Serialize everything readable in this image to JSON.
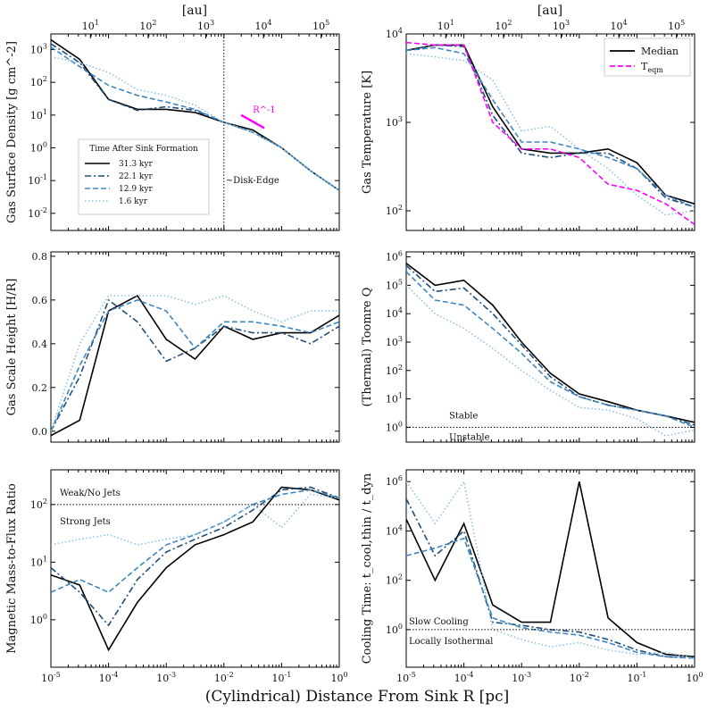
{
  "colors": {
    "s1": "#000000",
    "s2": "#1f4e79",
    "s3": "#3f87bf",
    "s4": "#8cc3e6",
    "teqm": "#ff00ff"
  },
  "xlabel": "(Cylindrical) Distance From Sink R [pc]",
  "top_axis_label": "[au]",
  "x_ticks": [
    "10^-5",
    "10^-4",
    "10^-3",
    "10^-2",
    "10^-1",
    "10^0"
  ],
  "au_ticks": [
    "10^1",
    "10^2",
    "10^3",
    "10^4",
    "10^5"
  ],
  "chart_data": [
    {
      "type": "line",
      "id": "surface_density",
      "ylabel": "Gas Surface Density [g cm^-2]",
      "yscale": "log",
      "ylim": [
        0.003,
        3000
      ],
      "yticks": [
        "10^-2",
        "10^-1",
        "10^0",
        "10^1",
        "10^2",
        "10^3"
      ],
      "x": [
        -5,
        -4.5,
        -4,
        -3.5,
        -3,
        -2.5,
        -2,
        -1.5,
        -1,
        -0.5,
        0
      ],
      "series": [
        {
          "name": "31.3 kyr",
          "style": "solid",
          "values": [
            2000,
            500,
            30,
            15,
            15,
            12,
            6,
            3.5,
            1,
            0.2,
            0.05
          ]
        },
        {
          "name": "22.1 kyr",
          "style": "dashdot",
          "values": [
            1500,
            400,
            30,
            14,
            18,
            14,
            6,
            3,
            1,
            0.2,
            0.05
          ]
        },
        {
          "name": "12.9 kyr",
          "style": "dashed",
          "values": [
            1200,
            300,
            80,
            40,
            25,
            15,
            6,
            3,
            1,
            0.2,
            0.05
          ]
        },
        {
          "name": "1.6 kyr",
          "style": "dotted",
          "values": [
            600,
            400,
            200,
            60,
            40,
            20,
            6,
            3,
            1,
            0.2,
            0.05
          ]
        }
      ],
      "annotations": {
        "disk_edge": "~Disk-Edge",
        "slope": "R^-1",
        "legend_title": "Time After Sink Formation"
      },
      "legend": [
        "31.3 kyr",
        "22.1 kyr",
        "12.9 kyr",
        "1.6 kyr"
      ]
    },
    {
      "type": "line",
      "id": "temperature",
      "ylabel": "Gas Temperature [K]",
      "yscale": "log",
      "ylim": [
        60,
        10000
      ],
      "yticks": [
        "10^2",
        "10^3",
        "10^4"
      ],
      "x": [
        -5,
        -4.5,
        -4,
        -3.5,
        -3,
        -2.5,
        -2,
        -1.5,
        -1,
        -0.5,
        0
      ],
      "series": [
        {
          "name": "Median",
          "style": "solid",
          "values": [
            6500,
            7500,
            7500,
            1500,
            500,
            450,
            450,
            500,
            350,
            150,
            120
          ]
        },
        {
          "name": "22.1 kyr",
          "style": "dashdot",
          "values": [
            6500,
            7500,
            7200,
            1200,
            450,
            400,
            450,
            450,
            300,
            140,
            110
          ]
        },
        {
          "name": "12.9 kyr",
          "style": "dashed",
          "values": [
            6500,
            7000,
            6000,
            1800,
            600,
            600,
            500,
            400,
            300,
            150,
            110
          ]
        },
        {
          "name": "1.6 kyr",
          "style": "dotted",
          "values": [
            6000,
            5500,
            5000,
            3000,
            800,
            900,
            500,
            300,
            150,
            90,
            100
          ]
        },
        {
          "name": "T_eqm",
          "style": "dashed",
          "values": [
            8000,
            7500,
            7500,
            1000,
            500,
            500,
            400,
            200,
            170,
            120,
            70
          ]
        }
      ],
      "legend": [
        "Median",
        "T_eqm"
      ]
    },
    {
      "type": "line",
      "id": "scale_height",
      "ylabel": "Gas Scale Height [H/R]",
      "yscale": "linear",
      "ylim": [
        -0.05,
        0.82
      ],
      "yticks": [
        "0.0",
        "0.2",
        "0.4",
        "0.6",
        "0.8"
      ],
      "x": [
        -5,
        -4.5,
        -4,
        -3.5,
        -3,
        -2.5,
        -2,
        -1.5,
        -1,
        -0.5,
        0
      ],
      "series": [
        {
          "name": "31.3 kyr",
          "style": "solid",
          "values": [
            -0.02,
            0.05,
            0.55,
            0.62,
            0.42,
            0.33,
            0.48,
            0.42,
            0.45,
            0.45,
            0.53
          ]
        },
        {
          "name": "22.1 kyr",
          "style": "dashdot",
          "values": [
            0.0,
            0.25,
            0.6,
            0.5,
            0.32,
            0.38,
            0.48,
            0.45,
            0.45,
            0.4,
            0.48
          ]
        },
        {
          "name": "12.9 kyr",
          "style": "dashed",
          "values": [
            0.0,
            0.3,
            0.55,
            0.6,
            0.55,
            0.38,
            0.5,
            0.5,
            0.48,
            0.45,
            0.5
          ]
        },
        {
          "name": "1.6 kyr",
          "style": "dotted",
          "values": [
            0.0,
            0.4,
            0.62,
            0.62,
            0.62,
            0.58,
            0.62,
            0.55,
            0.5,
            0.55,
            0.55
          ]
        }
      ]
    },
    {
      "type": "line",
      "id": "toomre",
      "ylabel": "(Thermal) Toomre Q",
      "yscale": "log",
      "ylim": [
        0.3,
        1500000
      ],
      "yticks": [
        "10^0",
        "10^1",
        "10^2",
        "10^3",
        "10^4",
        "10^5",
        "10^6"
      ],
      "x": [
        -5,
        -4.5,
        -4,
        -3.5,
        -3,
        -2.5,
        -2,
        -1.5,
        -1,
        -0.5,
        0
      ],
      "series": [
        {
          "name": "31.3 kyr",
          "style": "solid",
          "values": [
            600000,
            100000,
            150000,
            20000,
            1000,
            80,
            15,
            8,
            4,
            2.5,
            1.5
          ]
        },
        {
          "name": "22.1 kyr",
          "style": "dashdot",
          "values": [
            500000,
            60000,
            80000,
            10000,
            800,
            60,
            12,
            6,
            4,
            2.5,
            1.2
          ]
        },
        {
          "name": "12.9 kyr",
          "style": "dashed",
          "values": [
            300000,
            30000,
            20000,
            3000,
            400,
            40,
            12,
            6,
            4,
            2.5,
            1
          ]
        },
        {
          "name": "1.6 kyr",
          "style": "dotted",
          "values": [
            100000,
            10000,
            3000,
            600,
            100,
            20,
            5,
            4,
            2,
            0.5,
            0.8
          ]
        }
      ],
      "annotations": {
        "stable": "Stable",
        "unstable": "Unstable"
      }
    },
    {
      "type": "line",
      "id": "mass_to_flux",
      "ylabel": "Magnetic Mass-to-Flux Ratio",
      "yscale": "log",
      "ylim": [
        0.15,
        400
      ],
      "yticks": [
        "10^0",
        "10^1",
        "10^2"
      ],
      "x": [
        -5,
        -4.5,
        -4,
        -3.5,
        -3,
        -2.5,
        -2,
        -1.5,
        -1,
        -0.5,
        0
      ],
      "series": [
        {
          "name": "31.3 kyr",
          "style": "solid",
          "values": [
            6,
            4,
            0.3,
            2,
            8,
            20,
            30,
            50,
            200,
            180,
            120
          ]
        },
        {
          "name": "22.1 kyr",
          "style": "dashdot",
          "values": [
            8,
            3,
            0.8,
            5,
            15,
            25,
            40,
            80,
            180,
            200,
            130
          ]
        },
        {
          "name": "12.9 kyr",
          "style": "dashed",
          "values": [
            3,
            5,
            3,
            8,
            20,
            30,
            50,
            100,
            150,
            180,
            130
          ]
        },
        {
          "name": "1.6 kyr",
          "style": "dotted",
          "values": [
            20,
            25,
            30,
            20,
            25,
            30,
            50,
            100,
            40,
            150,
            130
          ]
        }
      ],
      "annotations": {
        "weak": "Weak/No Jets",
        "strong": "Strong Jets"
      }
    },
    {
      "type": "line",
      "id": "cooling",
      "ylabel": "Cooling Time: t_cool,thin / t_dyn",
      "yscale": "log",
      "ylim": [
        0.03,
        3000000
      ],
      "yticks": [
        "10^0",
        "10^2",
        "10^4",
        "10^6"
      ],
      "x": [
        -5,
        -4.5,
        -4,
        -3.5,
        -3,
        -2.5,
        -2,
        -1.5,
        -1,
        -0.5,
        0
      ],
      "series": [
        {
          "name": "31.3 kyr",
          "style": "solid",
          "values": [
            30000,
            100,
            20000,
            10,
            2,
            2,
            1000000,
            3,
            0.3,
            0.1,
            0.08
          ]
        },
        {
          "name": "22.1 kyr",
          "style": "dashdot",
          "values": [
            200000,
            1000,
            10000,
            2,
            1.5,
            1,
            0.8,
            0.4,
            0.15,
            0.08,
            0.07
          ]
        },
        {
          "name": "12.9 kyr",
          "style": "dashed",
          "values": [
            1000,
            2000,
            5000,
            3,
            1.2,
            0.8,
            0.6,
            0.3,
            0.12,
            0.08,
            0.07
          ]
        },
        {
          "name": "1.6 kyr",
          "style": "dotted",
          "values": [
            1000000,
            20000,
            1000000,
            1,
            0.4,
            0.2,
            0.3,
            0.15,
            0.1,
            0.12,
            0.07
          ]
        }
      ],
      "annotations": {
        "slow": "Slow Cooling",
        "iso": "Locally Isothermal"
      }
    }
  ]
}
